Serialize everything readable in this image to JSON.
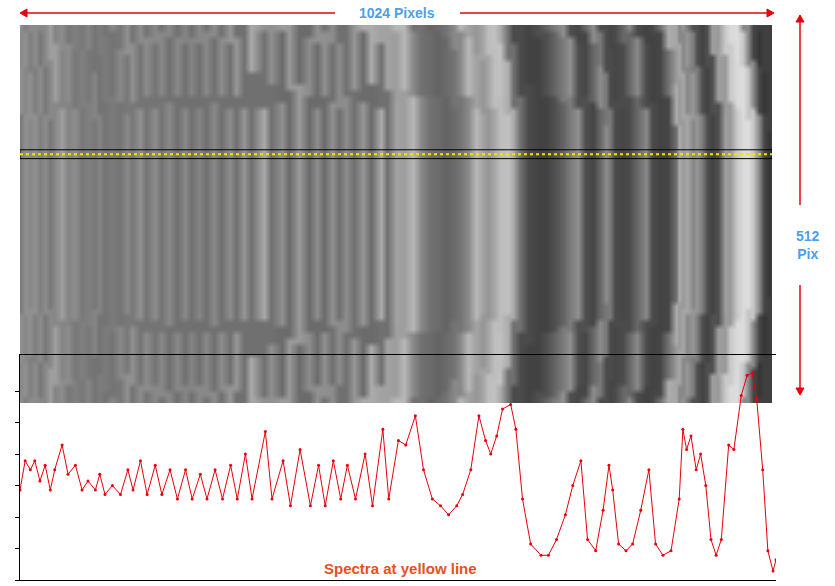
{
  "chart_data": {
    "type": "line",
    "annotations": {
      "width_label": "1024 Pixels",
      "height_label": [
        "512",
        "Pix"
      ],
      "caption": "Spectra at yellow line"
    },
    "x": [
      0,
      7,
      14,
      20,
      27,
      34,
      41,
      47,
      57,
      65,
      75,
      84,
      92,
      102,
      108,
      115,
      125,
      136,
      146,
      153,
      163,
      172,
      183,
      192,
      203,
      213,
      224,
      233,
      244,
      253,
      264,
      274,
      285,
      294,
      305,
      314,
      332,
      341,
      356,
      366,
      379,
      393,
      404,
      413,
      424,
      434,
      443,
      454,
      467,
      477,
      491,
      499,
      512,
      522,
      535,
      546,
      558,
      569,
      580,
      591,
      599,
      610,
      621,
      630,
      637,
      645,
      653,
      664,
      671,
      680,
      691,
      705,
      715,
      726,
      738,
      748,
      759,
      768,
      779,
      789,
      797,
      802,
      810,
      820,
      829,
      840,
      851,
      860,
      870,
      881,
      892,
      897,
      902,
      908,
      915,
      921,
      928,
      935,
      942,
      949,
      959,
      966,
      976,
      984,
      991,
      997,
      1005,
      1012,
      1019,
      1023
    ],
    "series": [
      {
        "color": "#e8000b",
        "marker": "dot",
        "line_style": "solid",
        "values": [
          40,
          53,
          49,
          53,
          44,
          51,
          40,
          49,
          60,
          47,
          51,
          40,
          44,
          40,
          47,
          38,
          42,
          38,
          49,
          40,
          53,
          38,
          51,
          38,
          49,
          36,
          49,
          36,
          47,
          36,
          49,
          36,
          51,
          36,
          56,
          36,
          66,
          36,
          53,
          33,
          58,
          33,
          51,
          33,
          53,
          36,
          51,
          36,
          56,
          33,
          67,
          36,
          62,
          60,
          73,
          49,
          36,
          33,
          29,
          33,
          38,
          49,
          73,
          62,
          56,
          64,
          76,
          78,
          67,
          36,
          16,
          11,
          11,
          18,
          29,
          42,
          53,
          18,
          13,
          31,
          51,
          40,
          16,
          13,
          16,
          31,
          49,
          16,
          11,
          13,
          36,
          67,
          58,
          64,
          49,
          56,
          42,
          18,
          11,
          18,
          60,
          58,
          82,
          91,
          92,
          80,
          49,
          13,
          4,
          9
        ]
      }
    ],
    "xlim": [
      0,
      1023
    ],
    "ylim": [
      0,
      100
    ],
    "yticks": [
      0,
      14,
      28,
      42,
      56,
      70,
      84
    ],
    "tick_labels": false,
    "grid": false
  }
}
